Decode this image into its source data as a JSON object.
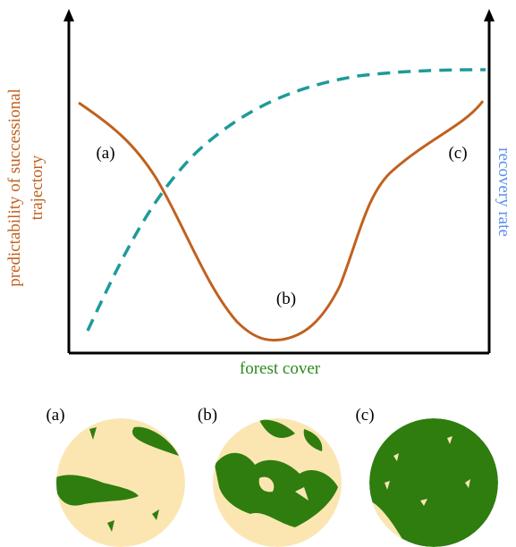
{
  "chart": {
    "y_label": [
      "predictability of successional",
      "trajectory"
    ],
    "y2_label": "recovery rate",
    "x_label": "forest cover",
    "curve_labels": [
      "(a)",
      "(b)",
      "(c)"
    ]
  },
  "panels": [
    {
      "label": "(a)"
    },
    {
      "label": "(b)"
    },
    {
      "label": "(c)"
    }
  ]
}
